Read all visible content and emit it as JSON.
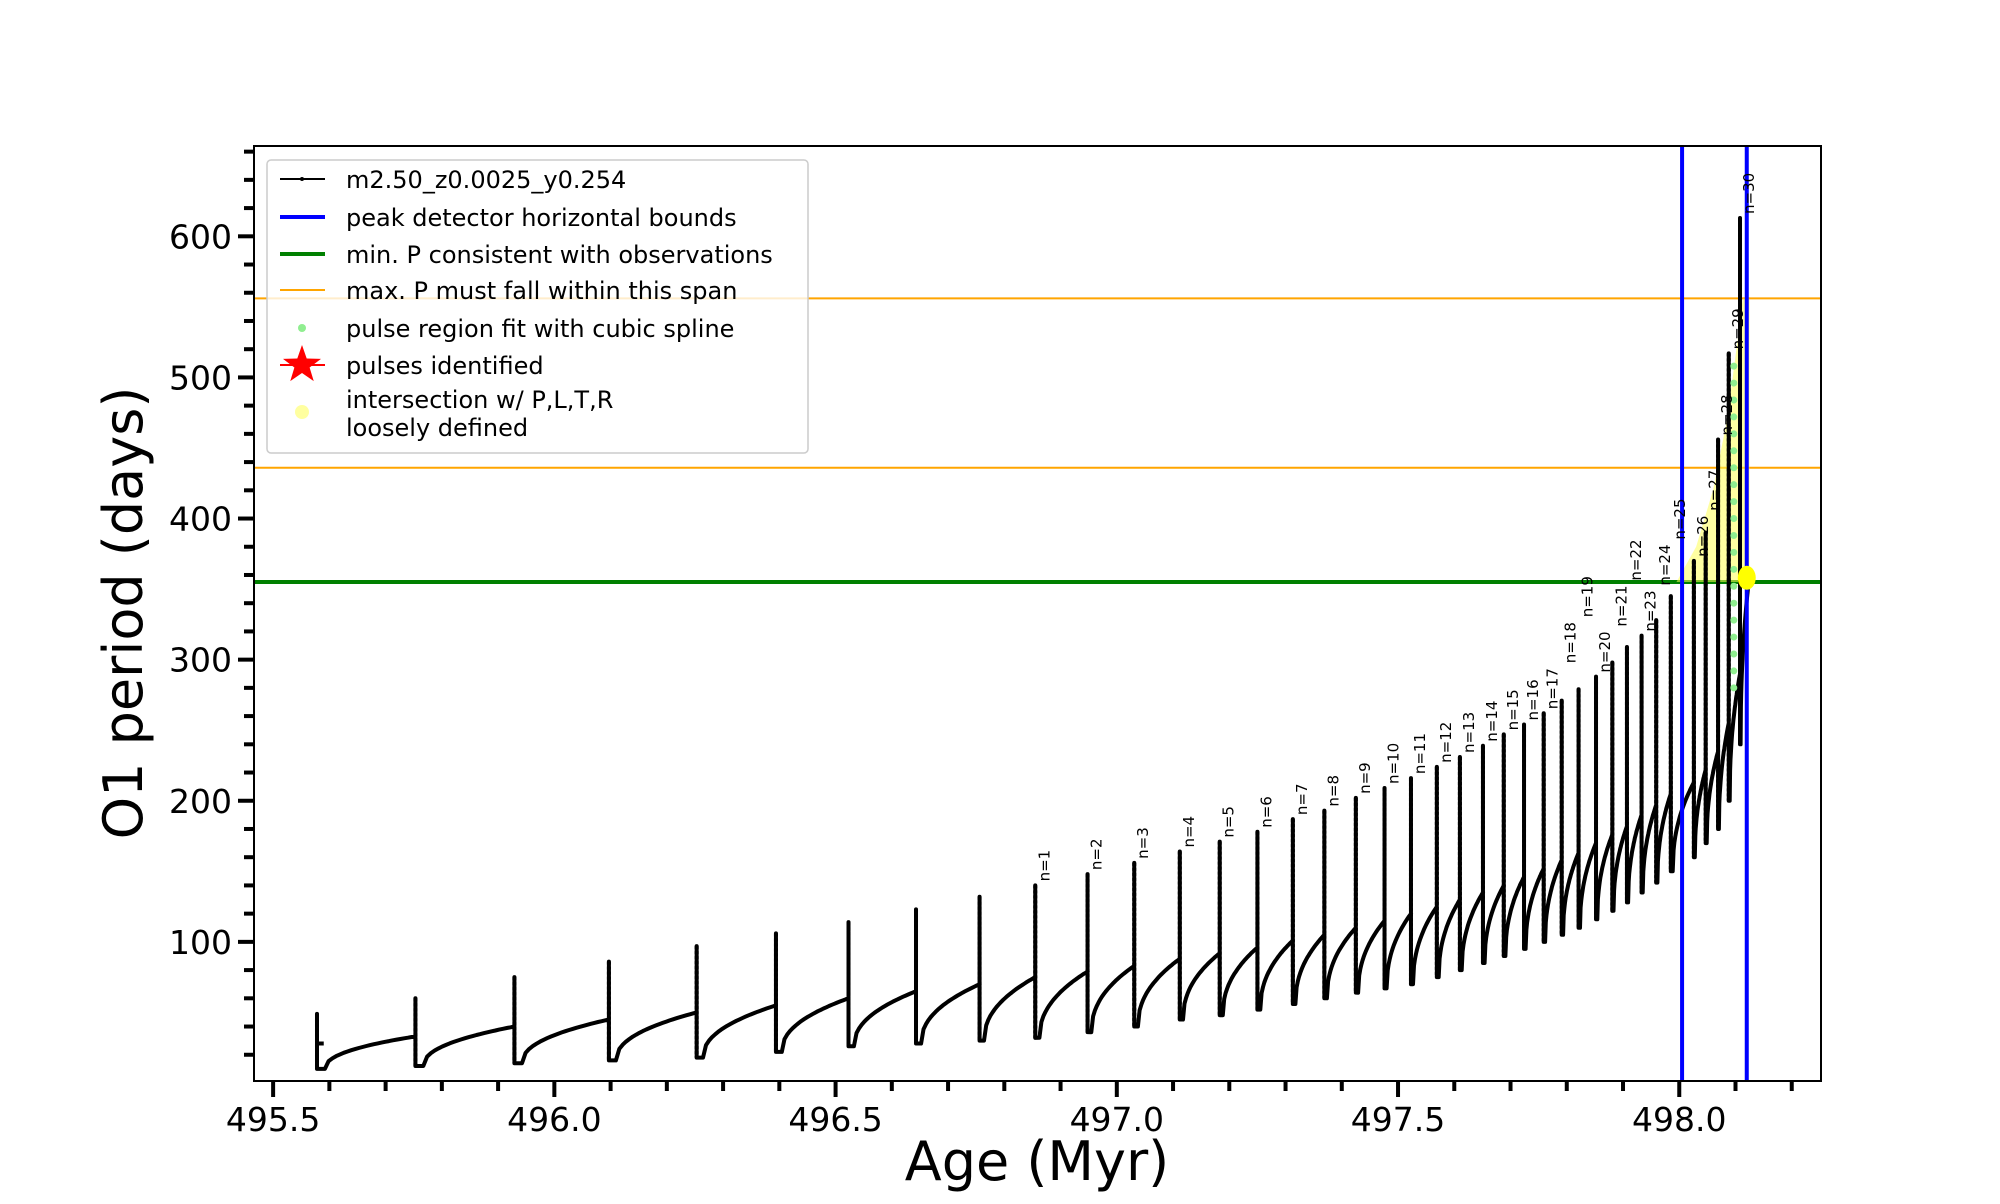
{
  "chart_data": {
    "type": "line",
    "xlabel": "Age (Myr)",
    "ylabel": "O1 period (days)",
    "xlim": [
      495.466,
      498.252
    ],
    "ylim": [
      1.4,
      664
    ],
    "x_ticks": [
      495.5,
      496.0,
      496.5,
      497.0,
      497.5,
      498.0
    ],
    "x_tick_labels": [
      "495.5",
      "496.0",
      "496.5",
      "497.0",
      "497.5",
      "498.0"
    ],
    "x_minor_step": 0.1,
    "y_ticks": [
      100,
      200,
      300,
      400,
      500,
      600
    ],
    "y_tick_labels": [
      "100",
      "200",
      "300",
      "400",
      "500",
      "600"
    ],
    "y_minor_step": 20,
    "legend_position": "upper-left",
    "legend": [
      {
        "label": "m2.50_z0.0025_y0.254",
        "color": "#000000",
        "kind": "line-marker"
      },
      {
        "label": "peak detector horizontal bounds",
        "color": "#0000ff",
        "kind": "line"
      },
      {
        "label": "min. P consistent with observations",
        "color": "#008000",
        "kind": "line"
      },
      {
        "label": "max. P must fall within this span",
        "color": "#ffa500",
        "kind": "thin-line"
      },
      {
        "label": "pulse region fit with cubic spline",
        "color": "#90ee90",
        "kind": "dot"
      },
      {
        "label": "pulses identified",
        "color": "#ff0000",
        "kind": "star"
      },
      {
        "label_lines": [
          "intersection w/ P,L,T,R",
          "loosely defined"
        ],
        "color": "#ffffa0",
        "kind": "dot"
      }
    ],
    "series_name": "m2.50_z0.0025_y0.254",
    "start": {
      "age": 495.59,
      "period": 28
    },
    "pulses": [
      {
        "label": "",
        "age": 495.578,
        "peak": 49,
        "base": 28,
        "trough": 10
      },
      {
        "label": "",
        "age": 495.753,
        "peak": 60,
        "base": 33,
        "trough": 12
      },
      {
        "label": "",
        "age": 495.929,
        "peak": 75,
        "base": 40,
        "trough": 14
      },
      {
        "label": "",
        "age": 496.097,
        "peak": 86,
        "base": 45,
        "trough": 16
      },
      {
        "label": "",
        "age": 496.253,
        "peak": 97,
        "base": 50,
        "trough": 18
      },
      {
        "label": "",
        "age": 496.394,
        "peak": 106,
        "base": 55,
        "trough": 22
      },
      {
        "label": "",
        "age": 496.523,
        "peak": 114,
        "base": 60,
        "trough": 26
      },
      {
        "label": "",
        "age": 496.643,
        "peak": 123,
        "base": 65,
        "trough": 28
      },
      {
        "label": "",
        "age": 496.756,
        "peak": 132,
        "base": 70,
        "trough": 30
      },
      {
        "label": "n=1",
        "age": 496.855,
        "peak": 140,
        "base": 75,
        "trough": 32
      },
      {
        "label": "n=2",
        "age": 496.948,
        "peak": 148,
        "base": 79,
        "trough": 36
      },
      {
        "label": "n=3",
        "age": 497.031,
        "peak": 156,
        "base": 83,
        "trough": 40
      },
      {
        "label": "n=4",
        "age": 497.112,
        "peak": 164,
        "base": 88,
        "trough": 45
      },
      {
        "label": "n=5",
        "age": 497.183,
        "peak": 171,
        "base": 92,
        "trough": 48
      },
      {
        "label": "n=6",
        "age": 497.25,
        "peak": 178,
        "base": 96,
        "trough": 52
      },
      {
        "label": "n=7",
        "age": 497.313,
        "peak": 187,
        "base": 101,
        "trough": 56
      },
      {
        "label": "n=8",
        "age": 497.369,
        "peak": 193,
        "base": 105,
        "trough": 60
      },
      {
        "label": "n=9",
        "age": 497.425,
        "peak": 202,
        "base": 110,
        "trough": 64
      },
      {
        "label": "n=10",
        "age": 497.476,
        "peak": 209,
        "base": 115,
        "trough": 67
      },
      {
        "label": "n=11",
        "age": 497.523,
        "peak": 216,
        "base": 120,
        "trough": 70
      },
      {
        "label": "n=12",
        "age": 497.569,
        "peak": 224,
        "base": 125,
        "trough": 75
      },
      {
        "label": "n=13",
        "age": 497.61,
        "peak": 231,
        "base": 130,
        "trough": 80
      },
      {
        "label": "n=14",
        "age": 497.651,
        "peak": 239,
        "base": 135,
        "trough": 85
      },
      {
        "label": "n=15",
        "age": 497.688,
        "peak": 247,
        "base": 140,
        "trough": 90
      },
      {
        "label": "n=16",
        "age": 497.724,
        "peak": 254,
        "base": 146,
        "trough": 95
      },
      {
        "label": "n=17",
        "age": 497.759,
        "peak": 262,
        "base": 152,
        "trough": 100
      },
      {
        "label": "n=18",
        "age": 497.791,
        "peak": 271,
        "base": 158,
        "trough": 105
      },
      {
        "label": "n=19",
        "age": 497.821,
        "peak": 279,
        "base": 163,
        "trough": 110
      },
      {
        "label": "n=20",
        "age": 497.852,
        "peak": 288,
        "base": 170,
        "trough": 116
      },
      {
        "label": "n=21",
        "age": 497.881,
        "peak": 298,
        "base": 176,
        "trough": 122
      },
      {
        "label": "n=22",
        "age": 497.907,
        "peak": 309,
        "base": 182,
        "trough": 128
      },
      {
        "label": "n=23",
        "age": 497.933,
        "peak": 317,
        "base": 190,
        "trough": 135
      },
      {
        "label": "n=24",
        "age": 497.959,
        "peak": 328,
        "base": 197,
        "trough": 142
      },
      {
        "label": "n=25",
        "age": 497.985,
        "peak": 345,
        "base": 205,
        "trough": 150
      },
      {
        "label": "n=26",
        "age": 498.026,
        "peak": 370,
        "base": 213,
        "trough": 160
      },
      {
        "label": "n=27",
        "age": 498.047,
        "peak": 390,
        "base": 222,
        "trough": 170
      },
      {
        "label": "n=28",
        "age": 498.069,
        "peak": 456,
        "base": 235,
        "trough": 180
      },
      {
        "label": "n=29",
        "age": 498.088,
        "peak": 517,
        "base": 255,
        "trough": 200
      },
      {
        "label": "n=30",
        "age": 498.108,
        "peak": 613,
        "base": 290,
        "trough": 240
      }
    ],
    "end": {
      "age": 498.122,
      "period": 350
    },
    "peak_detector_bounds": [
      498.005,
      498.12
    ],
    "min_period_observed": 355,
    "max_period_span": [
      436,
      556
    ],
    "spline_fit_points": {
      "age": 498.097,
      "period_range": [
        280,
        517
      ]
    },
    "intersection_point": {
      "age": 498.12,
      "period": 358
    },
    "intersection_region": [
      [
        497.995,
        355
      ],
      [
        498.03,
        380
      ],
      [
        498.06,
        420
      ],
      [
        498.085,
        470
      ],
      [
        498.105,
        530
      ],
      [
        498.113,
        556
      ],
      [
        498.125,
        556
      ],
      [
        498.125,
        355
      ]
    ]
  }
}
